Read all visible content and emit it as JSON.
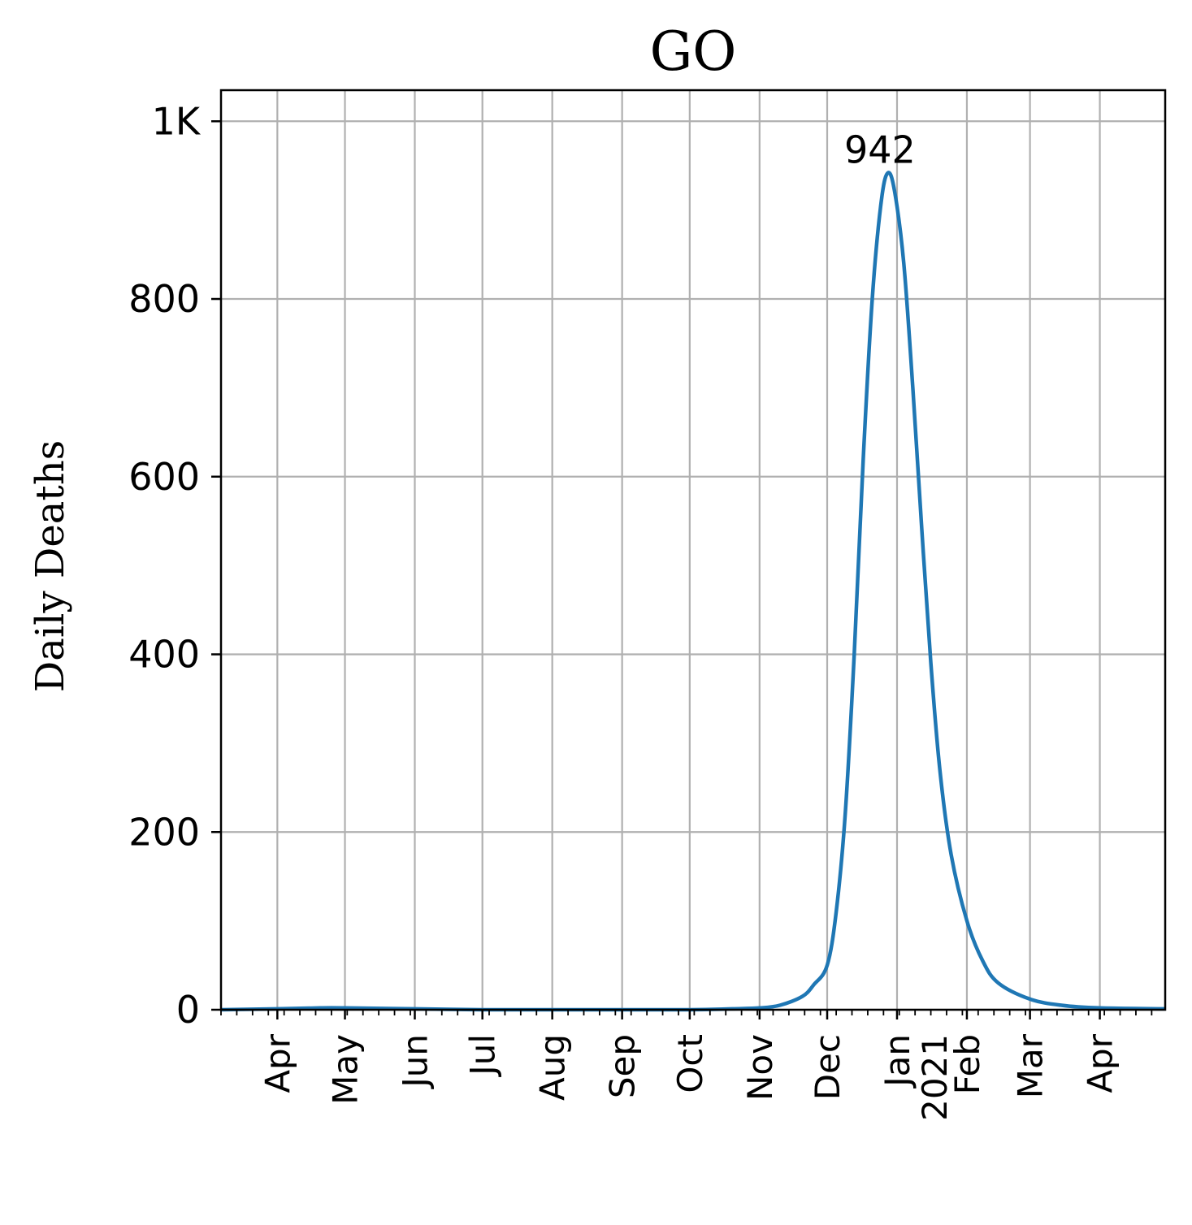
{
  "chart_data": {
    "type": "line",
    "title": "GO",
    "xlabel": "",
    "ylabel": "Daily Deaths",
    "xlim": [
      "2020-03-07",
      "2021-04-30"
    ],
    "ylim": [
      0,
      1035
    ],
    "grid": true,
    "yticks": [
      {
        "value": 0,
        "label": "0"
      },
      {
        "value": 200,
        "label": "200"
      },
      {
        "value": 400,
        "label": "400"
      },
      {
        "value": 600,
        "label": "600"
      },
      {
        "value": 800,
        "label": "800"
      },
      {
        "value": 1000,
        "label": "1K"
      }
    ],
    "xticks": [
      {
        "date": "2020-04-01",
        "label": "Apr"
      },
      {
        "date": "2020-05-01",
        "label": "May"
      },
      {
        "date": "2020-06-01",
        "label": "Jun"
      },
      {
        "date": "2020-07-01",
        "label": "Jul"
      },
      {
        "date": "2020-08-01",
        "label": "Aug"
      },
      {
        "date": "2020-09-01",
        "label": "Sep"
      },
      {
        "date": "2020-10-01",
        "label": "Oct"
      },
      {
        "date": "2020-11-01",
        "label": "Nov"
      },
      {
        "date": "2020-12-01",
        "label": "Dec"
      },
      {
        "date": "2021-01-01",
        "label": "Jan\n2021"
      },
      {
        "date": "2021-02-01",
        "label": "Feb"
      },
      {
        "date": "2021-03-01",
        "label": "Mar"
      },
      {
        "date": "2021-04-01",
        "label": "Apr"
      }
    ],
    "series": [
      {
        "color": "#1f77b4",
        "points": [
          [
            "2020-03-07",
            0
          ],
          [
            "2020-04-01",
            1
          ],
          [
            "2020-04-20",
            2
          ],
          [
            "2020-05-01",
            2
          ],
          [
            "2020-06-01",
            1
          ],
          [
            "2020-07-01",
            0
          ],
          [
            "2020-08-01",
            0
          ],
          [
            "2020-09-01",
            0
          ],
          [
            "2020-10-01",
            0
          ],
          [
            "2020-10-20",
            1
          ],
          [
            "2020-11-01",
            2
          ],
          [
            "2020-11-10",
            5
          ],
          [
            "2020-11-20",
            15
          ],
          [
            "2020-11-25",
            28
          ],
          [
            "2020-12-01",
            50
          ],
          [
            "2020-12-05",
            110
          ],
          [
            "2020-12-09",
            220
          ],
          [
            "2020-12-13",
            400
          ],
          [
            "2020-12-17",
            620
          ],
          [
            "2020-12-21",
            800
          ],
          [
            "2020-12-25",
            910
          ],
          [
            "2020-12-28",
            942
          ],
          [
            "2020-12-31",
            920
          ],
          [
            "2021-01-04",
            840
          ],
          [
            "2021-01-08",
            700
          ],
          [
            "2021-01-12",
            540
          ],
          [
            "2021-01-16",
            390
          ],
          [
            "2021-01-20",
            270
          ],
          [
            "2021-01-25",
            175
          ],
          [
            "2021-02-01",
            100
          ],
          [
            "2021-02-08",
            55
          ],
          [
            "2021-02-15",
            30
          ],
          [
            "2021-03-01",
            12
          ],
          [
            "2021-03-15",
            5
          ],
          [
            "2021-04-01",
            2
          ],
          [
            "2021-04-30",
            1
          ]
        ]
      }
    ],
    "annotations": [
      {
        "text": "942",
        "date": "2020-12-28",
        "value": 942
      }
    ]
  }
}
